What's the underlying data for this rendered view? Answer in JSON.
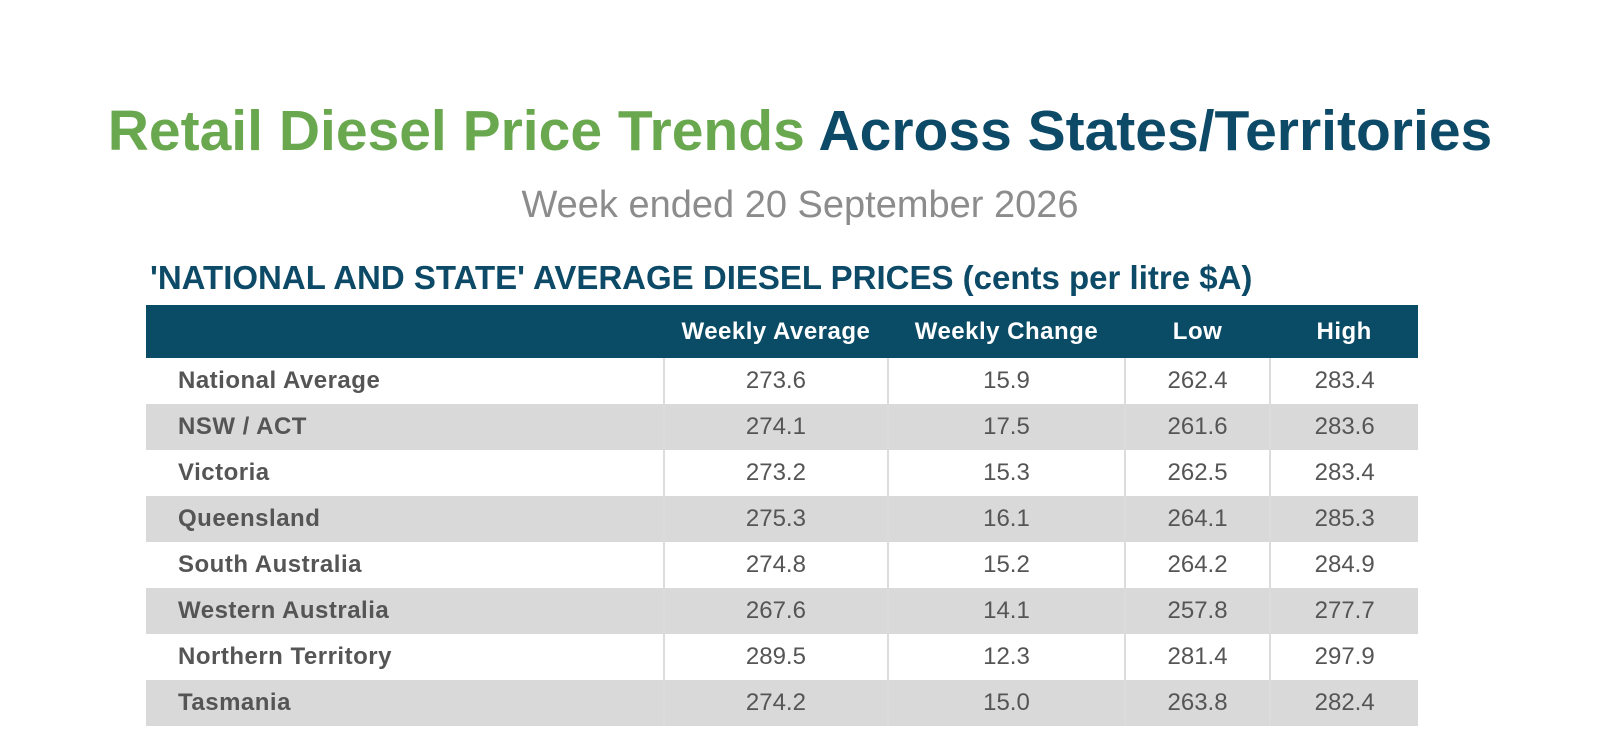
{
  "title": {
    "part1": "Retail Diesel Price Trends",
    "part2": "Across States/Territories"
  },
  "subtitle": "Week ended 20 September 2026",
  "table_heading": "'NATIONAL AND STATE' AVERAGE DIESEL PRICES (cents per litre $A)",
  "columns": [
    "",
    "Weekly Average",
    "Weekly Change",
    "Low",
    "High"
  ],
  "rows": [
    {
      "region": "National Average",
      "weekly_average": "273.6",
      "weekly_change": "15.9",
      "low": "262.4",
      "high": "283.4"
    },
    {
      "region": "NSW / ACT",
      "weekly_average": "274.1",
      "weekly_change": "17.5",
      "low": "261.6",
      "high": "283.6"
    },
    {
      "region": "Victoria",
      "weekly_average": "273.2",
      "weekly_change": "15.3",
      "low": "262.5",
      "high": "283.4"
    },
    {
      "region": "Queensland",
      "weekly_average": "275.3",
      "weekly_change": "16.1",
      "low": "264.1",
      "high": "285.3"
    },
    {
      "region": "South Australia",
      "weekly_average": "274.8",
      "weekly_change": "15.2",
      "low": "264.2",
      "high": "284.9"
    },
    {
      "region": "Western Australia",
      "weekly_average": "267.6",
      "weekly_change": "14.1",
      "low": "257.8",
      "high": "277.7"
    },
    {
      "region": "Northern Territory",
      "weekly_average": "289.5",
      "weekly_change": "12.3",
      "low": "281.4",
      "high": "297.9"
    },
    {
      "region": "Tasmania",
      "weekly_average": "274.2",
      "weekly_change": "15.0",
      "low": "263.8",
      "high": "282.4"
    }
  ],
  "colors": {
    "title_green": "#6aa84f",
    "title_navy": "#0c4a67",
    "header_bg": "#0a4b66",
    "stripe": "#d9d9d9"
  }
}
